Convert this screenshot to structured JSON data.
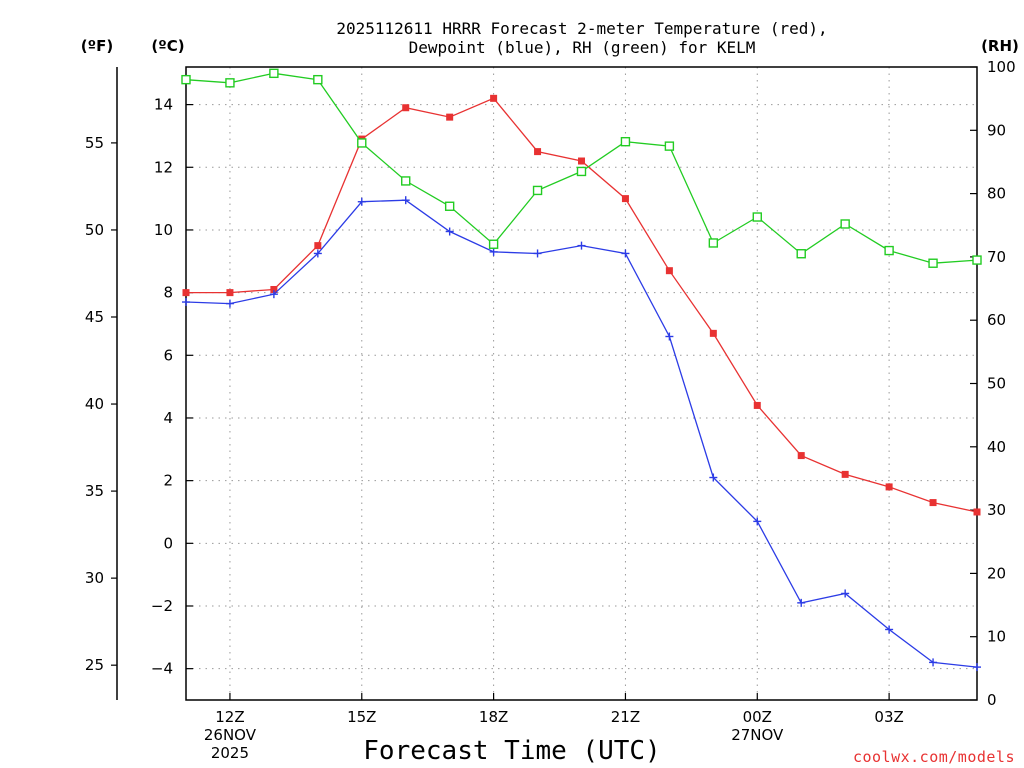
{
  "chart_data": {
    "type": "line",
    "title_lines": [
      "2025112611 HRRR Forecast 2-meter Temperature (red),",
      "Dewpoint (blue), RH (green) for KELM"
    ],
    "xlabel": "Forecast Time (UTC)",
    "watermark": "coolwx.com/models",
    "x_hours": [
      11,
      12,
      13,
      14,
      15,
      16,
      17,
      18,
      19,
      20,
      21,
      22,
      23,
      24,
      25,
      26,
      27,
      28,
      29
    ],
    "xlim": [
      11,
      29
    ],
    "x_ticks": [
      {
        "x": 12,
        "lines": [
          "12Z",
          "26NOV",
          "2025"
        ]
      },
      {
        "x": 15,
        "lines": [
          "15Z"
        ]
      },
      {
        "x": 18,
        "lines": [
          "18Z"
        ]
      },
      {
        "x": 21,
        "lines": [
          "21Z"
        ]
      },
      {
        "x": 24,
        "lines": [
          "00Z",
          "27NOV"
        ]
      },
      {
        "x": 27,
        "lines": [
          "03Z"
        ]
      }
    ],
    "axes": {
      "celsius": {
        "label": "(ºC)",
        "ylim": [
          -5,
          15.2
        ],
        "ticks": [
          "-4",
          "-2",
          "0",
          "2",
          "4",
          "6",
          "8",
          "10",
          "12",
          "14"
        ]
      },
      "fahrenheit": {
        "label": "(ºF)",
        "ticks": [
          "25",
          "30",
          "35",
          "40",
          "45",
          "50",
          "55"
        ]
      },
      "rh": {
        "label": "(RH)",
        "ylim": [
          0,
          100
        ],
        "ticks": [
          "0",
          "10",
          "20",
          "30",
          "40",
          "50",
          "60",
          "70",
          "80",
          "90",
          "100"
        ]
      }
    },
    "series": [
      {
        "name": "Temperature",
        "axis": "celsius",
        "color": "#e83232",
        "marker": "filled-square",
        "values": [
          8.0,
          8.0,
          8.1,
          9.5,
          12.9,
          13.9,
          13.6,
          14.2,
          12.5,
          12.2,
          11.0,
          8.7,
          6.7,
          4.4,
          2.8,
          2.2,
          1.8,
          1.3,
          1.0
        ]
      },
      {
        "name": "Dewpoint",
        "axis": "celsius",
        "color": "#2c3ce6",
        "marker": "plus",
        "values": [
          7.7,
          7.65,
          7.95,
          9.25,
          10.9,
          10.95,
          9.95,
          9.3,
          9.25,
          9.5,
          9.25,
          6.6,
          2.1,
          0.7,
          -1.9,
          -1.6,
          -2.75,
          -3.8,
          -3.95
        ]
      },
      {
        "name": "RH",
        "axis": "rh",
        "color": "#22cc22",
        "marker": "open-square",
        "values": [
          98,
          97.5,
          99,
          98,
          88,
          82,
          78,
          72,
          80.5,
          83.5,
          88.2,
          87.5,
          72.2,
          76.3,
          70.5,
          75.2,
          71,
          69,
          69.5
        ]
      }
    ]
  }
}
